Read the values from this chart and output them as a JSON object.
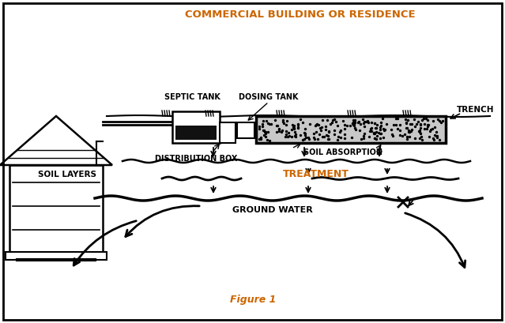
{
  "title": "COMMERCIAL BUILDING OR RESIDENCE",
  "figure_label": "Figure 1",
  "bg_color": "#ffffff",
  "border_color": "#000000",
  "text_color": "#000000",
  "orange_color": "#CC6600",
  "labels": {
    "septic_tank": "SEPTIC TANK",
    "dosing_tank": "DOSING TANK",
    "trench": "TRENCH",
    "distribution_box": "DISTRIBUTION BOX",
    "soil_absorption": "SOIL ABSORPTION",
    "soil_layers": "SOIL LAYERS",
    "treatment": "TREATMENT",
    "ground_water": "GROUND WATER"
  },
  "figsize": [
    6.39,
    4.09
  ],
  "dpi": 100
}
